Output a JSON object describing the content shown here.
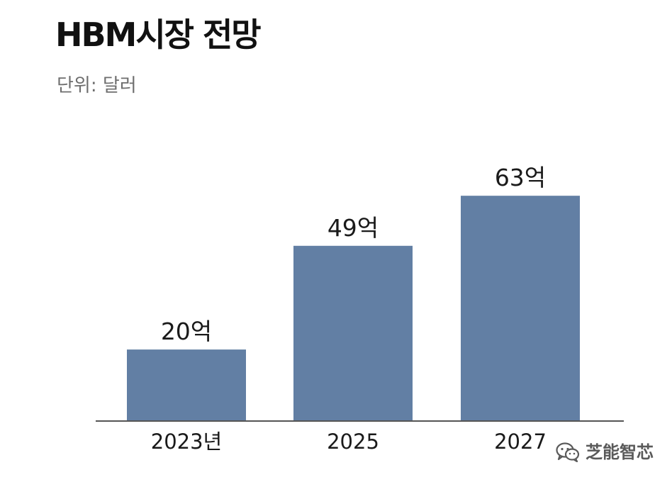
{
  "title": "HBM시장 전망",
  "unit_label": "단위: 달러",
  "watermark": {
    "text": "芝能智芯",
    "icon": "wechat-icon"
  },
  "colors": {
    "bar": "#627fa4",
    "axis": "#555555",
    "text": "#1a1a1a",
    "subtitle": "#6e6e6e"
  },
  "chart_data": {
    "type": "bar",
    "title": "HBM시장 전망",
    "unit": "단위: 달러",
    "categories": [
      "2023년",
      "2025",
      "2027"
    ],
    "values": [
      20,
      49,
      63
    ],
    "value_labels": [
      "20억",
      "49억",
      "63억"
    ],
    "xlabel": "",
    "ylabel": "",
    "ylim": [
      0,
      70
    ],
    "grid": false,
    "legend": "none"
  }
}
